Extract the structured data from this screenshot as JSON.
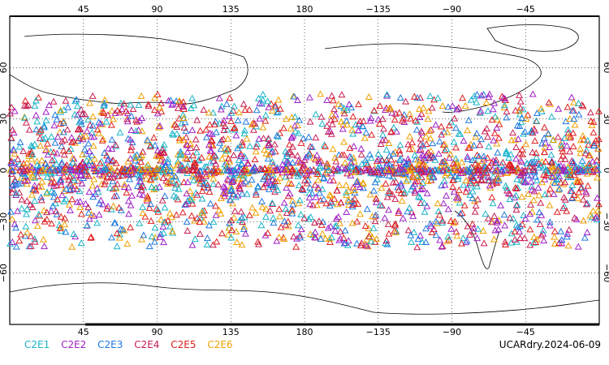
{
  "map": {
    "type": "scatter",
    "projection": "equirectangular",
    "lon_range": [
      0,
      360
    ],
    "lat_range": [
      -90,
      90
    ],
    "grid": true,
    "top_lon_ticks": [
      "45",
      "90",
      "135",
      "180",
      "−135",
      "−90",
      "−45"
    ],
    "bottom_lon_ticks": [
      "45",
      "90",
      "135",
      "180",
      "−135",
      "−90",
      "−45"
    ],
    "lat_ticks_left": [
      "60",
      "30",
      "0",
      "−30",
      "−60"
    ],
    "lat_ticks_right": [
      "60",
      "30",
      "0",
      "−30",
      "−60"
    ],
    "marker": "open-triangle",
    "density_note_lat_band": [
      -45,
      45
    ],
    "colors": {
      "C2E1": "#19b5c8",
      "C2E2": "#a020c8",
      "C2E3": "#1e78e0",
      "C2E4": "#c81e50",
      "C2E5": "#e01e1e",
      "C2E6": "#f0a000"
    }
  },
  "legend": {
    "items": [
      {
        "label": "C2E1",
        "color": "#19b5c8"
      },
      {
        "label": "C2E2",
        "color": "#a020c8"
      },
      {
        "label": "C2E3",
        "color": "#1e78e0"
      },
      {
        "label": "C2E4",
        "color": "#c81e50"
      },
      {
        "label": "C2E5",
        "color": "#e01e1e"
      },
      {
        "label": "C2E6",
        "color": "#f0a000"
      }
    ]
  },
  "stamp": "UCARdry.2024-06-09"
}
